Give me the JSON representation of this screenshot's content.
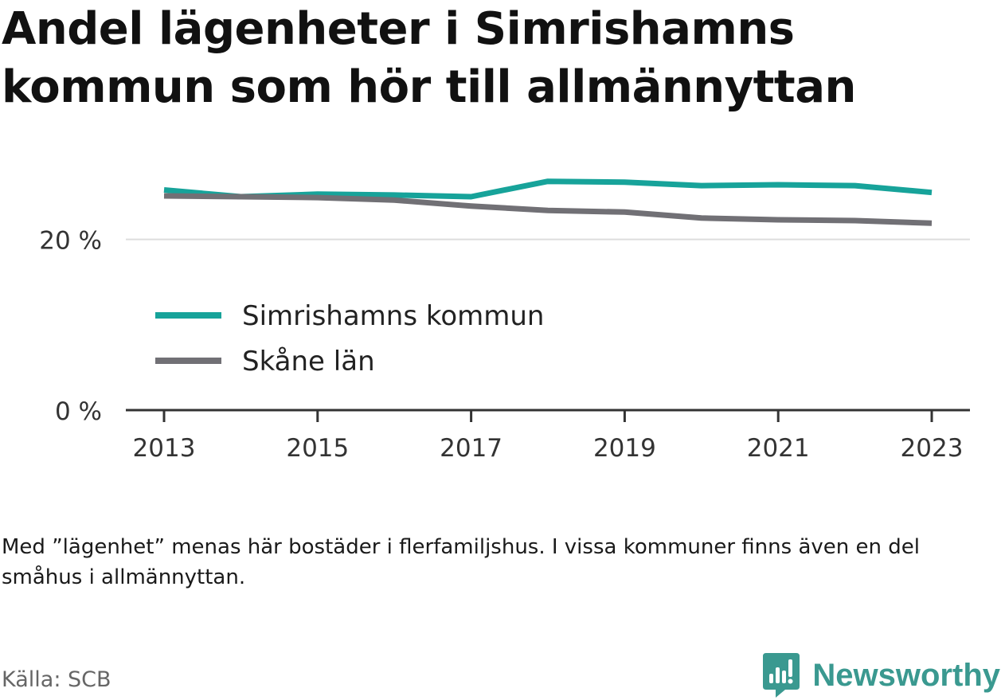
{
  "chart_data": {
    "type": "line",
    "title": "Andel lägenheter i Simrishamns kommun som hör till allmännyttan",
    "x": [
      2013,
      2014,
      2015,
      2016,
      2017,
      2018,
      2019,
      2020,
      2021,
      2022,
      2023
    ],
    "x_ticks": [
      "2013",
      "2015",
      "2017",
      "2019",
      "2021",
      "2023"
    ],
    "y_ticks": [
      {
        "value": 0,
        "label": "0 %"
      },
      {
        "value": 20,
        "label": "20 %"
      }
    ],
    "ylim": [
      0,
      32
    ],
    "grid": "horizontal",
    "legend_position": "inside-left",
    "series": [
      {
        "name": "Simrishamns kommun",
        "color": "#17a39a",
        "values": [
          25.8,
          25.0,
          25.3,
          25.2,
          25.0,
          26.8,
          26.7,
          26.3,
          26.4,
          26.3,
          25.5
        ]
      },
      {
        "name": "Skåne län",
        "color": "#717075",
        "values": [
          25.1,
          25.0,
          24.9,
          24.6,
          23.9,
          23.4,
          23.2,
          22.5,
          22.3,
          22.2,
          21.9
        ]
      }
    ]
  },
  "note": "Med ”lägenhet” menas här bostäder i flerfamiljshus. I vissa kommuner finns även en del småhus i allmännyttan.",
  "source": "Källa: SCB",
  "brand": {
    "name": "Newsworthy",
    "color": "#3a9990",
    "icon": "newsworthy-logo-icon"
  }
}
